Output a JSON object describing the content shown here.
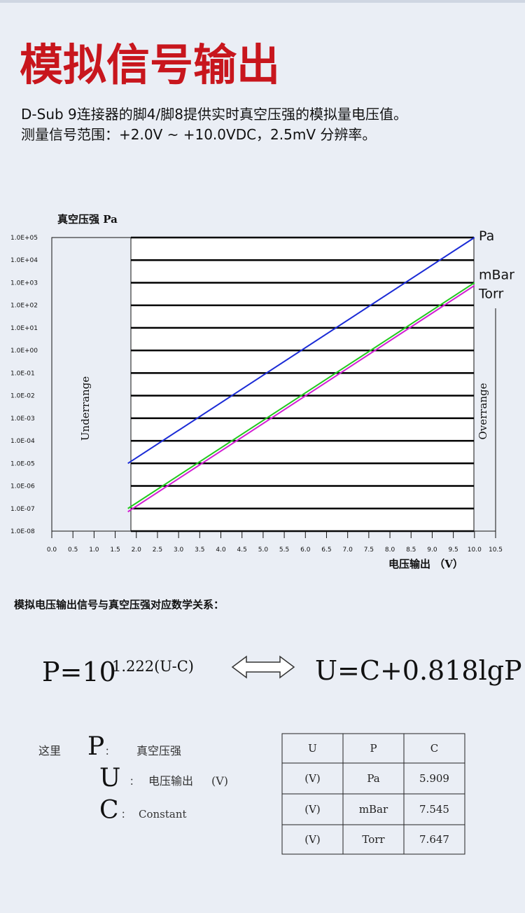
{
  "header": {
    "title": "模拟信号输出",
    "description": [
      "D-Sub 9连接器的脚4/脚8提供实时真空压强的模拟量电压值。",
      "测量信号范围：+2.0V ~ +10.0VDC，2.5mV 分辨率。"
    ]
  },
  "chart_data": {
    "type": "line",
    "y_label": "真空压强 Pa",
    "x_label": "电压输出 （V）",
    "log_y": true,
    "grid": true,
    "annotations": [
      "Underrange",
      "Overrange"
    ],
    "xlim": [
      0,
      10.5
    ],
    "xticks": [
      {
        "value": 0,
        "label": "0.0"
      },
      0.5,
      {
        "value": 1,
        "label": "1.0"
      },
      1.5,
      {
        "value": 2,
        "label": "2.0"
      },
      2.5,
      {
        "value": 3,
        "label": "3.0"
      },
      3.5,
      {
        "value": 4,
        "label": "4.0"
      },
      4.5,
      {
        "value": 5,
        "label": "5.0"
      },
      5.5,
      {
        "value": 6,
        "label": "6.0"
      },
      6.5,
      {
        "value": 7,
        "label": "7.0"
      },
      7.5,
      {
        "value": 8,
        "label": "8.0"
      },
      8.5,
      {
        "value": 9,
        "label": "9.0"
      },
      9.5,
      {
        "value": 10,
        "label": "10.0"
      },
      10.5
    ],
    "ylim": [
      1e-08,
      100000
    ],
    "yticks": [
      {
        "value": 100000,
        "label": "1.0E+05"
      },
      {
        "value": 10000,
        "label": "1.0E+04"
      },
      {
        "value": 1000,
        "label": "1.0E+03"
      },
      {
        "value": 100,
        "label": "1.0E+02"
      },
      {
        "value": 10,
        "label": "1.0E+01"
      },
      {
        "value": 1,
        "label": "1.0E+00"
      },
      {
        "value": 0.1,
        "label": "1.0E-01"
      },
      {
        "value": 0.01,
        "label": "1.0E-02"
      },
      {
        "value": 0.001,
        "label": "1.0E-03"
      },
      {
        "value": 0.0001,
        "label": "1.0E-04"
      },
      {
        "value": 1e-05,
        "label": "1.0E-05"
      },
      {
        "value": 1e-06,
        "label": "1.0E-06"
      },
      {
        "value": 1e-07,
        "label": "1.0E-07"
      },
      {
        "value": 1e-08,
        "label": "1.0E-08"
      }
    ],
    "x": [
      1.8,
      10
    ],
    "series": [
      {
        "name": "Pa",
        "color": "#1a2bd6",
        "values": [
          1e-05,
          100000
        ]
      },
      {
        "name": "mBar",
        "color": "#22c81e",
        "values": [
          1e-07,
          1000
        ]
      },
      {
        "name": "Torr",
        "color": "#d21fd2",
        "values": [
          7.2e-08,
          750
        ]
      }
    ]
  },
  "formula": {
    "heading": "模拟电压输出信号与真空压强对应数学关系：",
    "left": "P=10",
    "exponent": "1.222(U-C)",
    "right": "U=C+0.818lgP"
  },
  "legend": {
    "intro": "这里",
    "items": [
      {
        "symbol": "P",
        "colon": "：",
        "text": "真空压强"
      },
      {
        "symbol": "U",
        "colon": "：",
        "text": "电压输出",
        "unit": "(V)"
      },
      {
        "symbol": "C",
        "colon": "：",
        "text": "Constant"
      }
    ]
  },
  "table": {
    "header": [
      "U",
      "P",
      "C"
    ],
    "rows": [
      [
        "(V)",
        "Pa",
        5.909
      ],
      [
        "(V)",
        "mBar",
        7.545
      ],
      [
        "(V)",
        "Torr",
        7.647
      ]
    ]
  }
}
